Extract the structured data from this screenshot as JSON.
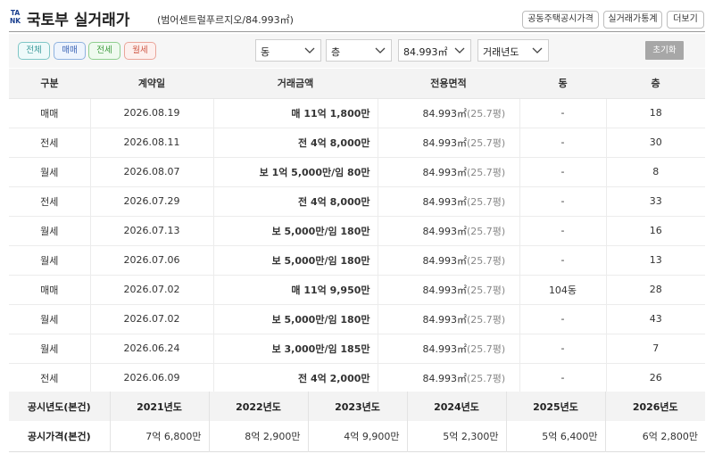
{
  "header": {
    "title": "국토부 실거래가",
    "subtitle": "(범어센트럴푸르지오/84.993㎡)",
    "buttons": [
      "공동주택공시가격",
      "실거래가통계",
      "더보기"
    ]
  },
  "filters": {
    "pills": [
      "전체",
      "매매",
      "전세",
      "월세"
    ],
    "dong": "동",
    "floor": "층",
    "area": "84.993㎡",
    "year": "거래년도",
    "reset": "초기화"
  },
  "colors": {
    "sale": "#3c5ed6",
    "jeonse": "#2a9a2a",
    "monthly": "#e2553e"
  },
  "deals": {
    "columns": [
      "구분",
      "계약일",
      "거래금액",
      "전용면적",
      "동",
      "층"
    ],
    "rows": [
      {
        "type": "매매",
        "kind": "sale",
        "date": "2026.08.19",
        "price": "매 11억 1,800만",
        "area": "84.993㎡",
        "pyeong": "(25.7평)",
        "dong": "-",
        "floor": "18"
      },
      {
        "type": "전세",
        "kind": "jeonse",
        "date": "2026.08.11",
        "price": "전 4억 8,000만",
        "area": "84.993㎡",
        "pyeong": "(25.7평)",
        "dong": "-",
        "floor": "30"
      },
      {
        "type": "월세",
        "kind": "monthly",
        "date": "2026.08.07",
        "price": "보 1억 5,000만/임 80만",
        "area": "84.993㎡",
        "pyeong": "(25.7평)",
        "dong": "-",
        "floor": "8"
      },
      {
        "type": "전세",
        "kind": "jeonse",
        "date": "2026.07.29",
        "price": "전 4억 8,000만",
        "area": "84.993㎡",
        "pyeong": "(25.7평)",
        "dong": "-",
        "floor": "33"
      },
      {
        "type": "월세",
        "kind": "monthly",
        "date": "2026.07.13",
        "price": "보 5,000만/임 180만",
        "area": "84.993㎡",
        "pyeong": "(25.7평)",
        "dong": "-",
        "floor": "16"
      },
      {
        "type": "월세",
        "kind": "monthly",
        "date": "2026.07.06",
        "price": "보 5,000만/임 180만",
        "area": "84.993㎡",
        "pyeong": "(25.7평)",
        "dong": "-",
        "floor": "13"
      },
      {
        "type": "매매",
        "kind": "sale",
        "date": "2026.07.02",
        "price": "매 11억 9,950만",
        "area": "84.993㎡",
        "pyeong": "(25.7평)",
        "dong": "104동",
        "floor": "28"
      },
      {
        "type": "월세",
        "kind": "monthly",
        "date": "2026.07.02",
        "price": "보 5,000만/임 180만",
        "area": "84.993㎡",
        "pyeong": "(25.7평)",
        "dong": "-",
        "floor": "43"
      },
      {
        "type": "월세",
        "kind": "monthly",
        "date": "2026.06.24",
        "price": "보 3,000만/임 185만",
        "area": "84.993㎡",
        "pyeong": "(25.7평)",
        "dong": "-",
        "floor": "7"
      },
      {
        "type": "전세",
        "kind": "jeonse",
        "date": "2026.06.09",
        "price": "전 4억 2,000만",
        "area": "84.993㎡",
        "pyeong": "(25.7평)",
        "dong": "-",
        "floor": "26"
      }
    ]
  },
  "official": {
    "year_header": "공시년도(본건)",
    "years": [
      "2021년도",
      "2022년도",
      "2023년도",
      "2024년도",
      "2025년도",
      "2026년도"
    ],
    "price_header": "공시가격(본건)",
    "prices": [
      "7억 6,800만",
      "8억 2,900만",
      "4억 9,900만",
      "5억 2,300만",
      "5억 6,400만",
      "6억 2,800만"
    ]
  }
}
